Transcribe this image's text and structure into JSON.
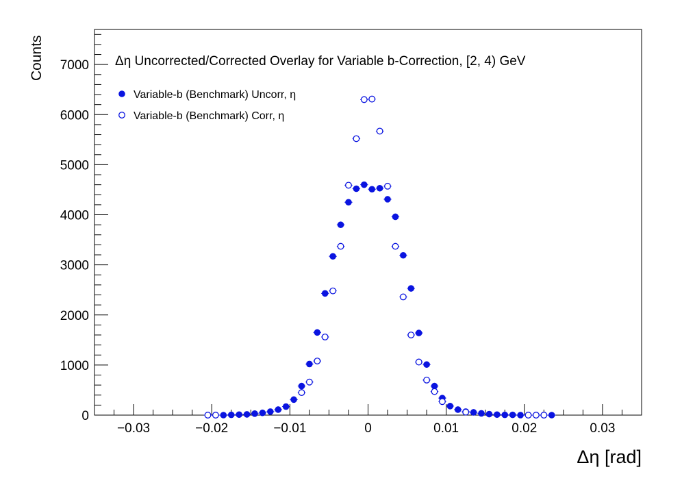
{
  "chart_data": {
    "type": "scatter",
    "title": "Δη Uncorrected/Corrected Overlay for Variable b-Correction, [2, 4) GeV",
    "xlabel": "Δη  [rad]",
    "ylabel": "Counts",
    "xlim": [
      -0.035,
      0.035
    ],
    "ylim": [
      0,
      7700
    ],
    "xticks": [
      -0.03,
      -0.02,
      -0.01,
      0,
      0.01,
      0.02,
      0.03
    ],
    "xtick_labels": [
      "−0.03",
      "−0.02",
      "−0.01",
      "0",
      "0.01",
      "0.02",
      "0.03"
    ],
    "yticks": [
      0,
      1000,
      2000,
      3000,
      4000,
      5000,
      6000,
      7000
    ],
    "ytick_labels": [
      "0",
      "1000",
      "2000",
      "3000",
      "4000",
      "5000",
      "6000",
      "7000"
    ],
    "legend_position": "top-left",
    "colors": {
      "series": "#0a14e0"
    },
    "series": [
      {
        "name": "Variable-b (Benchmark) Uncorr, η",
        "marker": "filled-circle",
        "x": [
          -0.0185,
          -0.0175,
          -0.0165,
          -0.0155,
          -0.0145,
          -0.0135,
          -0.0125,
          -0.0115,
          -0.0105,
          -0.0095,
          -0.0085,
          -0.0075,
          -0.0065,
          -0.0055,
          -0.0045,
          -0.0035,
          -0.0025,
          -0.0015,
          -0.0005,
          0.0005,
          0.0015,
          0.0025,
          0.0035,
          0.0045,
          0.0055,
          0.0065,
          0.0075,
          0.0085,
          0.0095,
          0.0105,
          0.0115,
          0.0125,
          0.0135,
          0.0145,
          0.0155,
          0.0165,
          0.0175,
          0.0185,
          0.0195,
          0.0235
        ],
        "y": [
          0,
          5,
          10,
          15,
          30,
          45,
          70,
          110,
          170,
          310,
          580,
          1020,
          1650,
          2430,
          3170,
          3800,
          4250,
          4520,
          4600,
          4510,
          4530,
          4310,
          3960,
          3190,
          2530,
          1640,
          1010,
          580,
          340,
          180,
          110,
          70,
          55,
          35,
          20,
          10,
          5,
          5,
          0,
          0
        ]
      },
      {
        "name": "Variable-b (Benchmark) Corr, η",
        "marker": "open-circle",
        "x": [
          -0.0205,
          -0.0195,
          -0.0085,
          -0.0075,
          -0.0065,
          -0.0055,
          -0.0045,
          -0.0035,
          -0.0025,
          -0.0015,
          -0.0005,
          0.0005,
          0.0015,
          0.0025,
          0.0035,
          0.0045,
          0.0055,
          0.0065,
          0.0075,
          0.0085,
          0.0095,
          0.0125,
          0.0205,
          0.0215,
          0.0225
        ],
        "y": [
          0,
          0,
          450,
          660,
          1080,
          1560,
          2480,
          3370,
          4590,
          5520,
          6300,
          6310,
          5670,
          4570,
          3370,
          2360,
          1600,
          1060,
          700,
          470,
          270,
          60,
          0,
          0,
          0
        ]
      }
    ]
  }
}
